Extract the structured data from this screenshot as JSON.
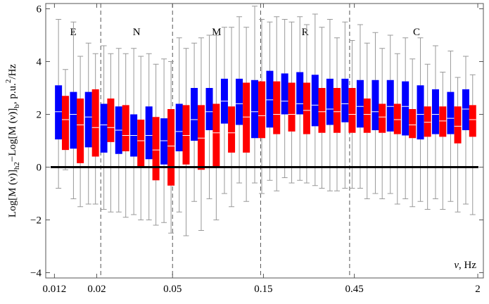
{
  "chart_data": {
    "type": "box",
    "y_label_parts": [
      "Log[M (ν)]",
      "h2",
      "−Log[M (ν)]",
      "b",
      ", p.u.",
      "2",
      "/Hz"
    ],
    "x_label_parts": [
      "ν",
      ", Hz"
    ],
    "xscale": "log",
    "xlim": [
      0.0108,
      2.14
    ],
    "ylim": [
      -4.2,
      6.2
    ],
    "xticks": [
      0.012,
      0.02,
      0.05,
      0.15,
      0.45,
      2
    ],
    "yticks": [
      {
        "value": -4,
        "label": "−4"
      },
      {
        "value": -2,
        "label": "−2"
      },
      0,
      2,
      4,
      6
    ],
    "reference_line": 0,
    "regions": [
      "E",
      "N",
      "M",
      "R",
      "C"
    ],
    "region_bounds": [
      0.021,
      0.05,
      0.145,
      0.425
    ],
    "series": [
      {
        "color": "#0000ff",
        "x": [
          0.0126,
          0.0151,
          0.0181,
          0.0218,
          0.0261,
          0.0313,
          0.0376,
          0.0451,
          0.0542,
          0.065,
          0.078,
          0.0936,
          0.112,
          0.135,
          0.162,
          0.194,
          0.233,
          0.28,
          0.335,
          0.402,
          0.483,
          0.58,
          0.695,
          0.834,
          1.0,
          1.2,
          1.44,
          1.73
        ],
        "whisker_low": [
          -0.8,
          -1.2,
          -1.4,
          -1.6,
          -1.7,
          -1.8,
          -2.0,
          -2.1,
          -1.7,
          -1.3,
          -1.2,
          -1.0,
          -0.6,
          -0.6,
          -0.5,
          -0.4,
          -0.5,
          -0.7,
          -0.9,
          -0.8,
          -0.8,
          -1.0,
          -1.0,
          -1.2,
          -1.3,
          -1.2,
          -1.3,
          -1.4
        ],
        "q1": [
          1.05,
          0.7,
          0.75,
          0.55,
          0.5,
          0.4,
          0.3,
          0.1,
          0.6,
          1.0,
          1.4,
          1.65,
          1.6,
          1.1,
          1.5,
          2.0,
          2.0,
          1.55,
          1.6,
          1.7,
          1.5,
          1.4,
          1.35,
          1.2,
          1.05,
          1.25,
          1.25,
          1.4
        ],
        "median": [
          2.1,
          2.0,
          1.9,
          1.6,
          1.4,
          1.2,
          1.2,
          1.0,
          1.35,
          1.8,
          2.1,
          2.5,
          2.4,
          2.1,
          2.55,
          2.5,
          2.4,
          2.35,
          2.2,
          2.4,
          2.3,
          2.1,
          2.3,
          2.3,
          2.0,
          2.0,
          1.85,
          2.2
        ],
        "q3": [
          3.1,
          2.85,
          2.85,
          2.4,
          2.3,
          2.0,
          2.3,
          1.85,
          2.4,
          3.0,
          3.0,
          3.35,
          3.35,
          3.3,
          3.65,
          3.55,
          3.6,
          3.5,
          3.35,
          3.35,
          3.3,
          3.3,
          3.3,
          3.25,
          3.1,
          2.95,
          2.85,
          2.95
        ],
        "whisker_high": [
          5.6,
          5.5,
          4.7,
          4.6,
          4.5,
          4.5,
          4.3,
          4.1,
          4.9,
          4.7,
          5.0,
          5.3,
          5.7,
          6.1,
          5.5,
          5.6,
          5.7,
          5.8,
          5.6,
          5.5,
          5.4,
          5.1,
          5.0,
          4.9,
          4.9,
          4.6,
          4.4,
          4.2
        ]
      },
      {
        "color": "#ff0000",
        "x": [
          0.0137,
          0.0164,
          0.0197,
          0.0237,
          0.0284,
          0.0341,
          0.0409,
          0.0491,
          0.0589,
          0.0707,
          0.0848,
          0.102,
          0.122,
          0.147,
          0.176,
          0.211,
          0.253,
          0.304,
          0.365,
          0.438,
          0.525,
          0.63,
          0.757,
          0.908,
          1.09,
          1.31,
          1.57,
          1.88
        ],
        "whisker_low": [
          -0.1,
          -1.5,
          -1.4,
          -1.7,
          -1.9,
          -2.0,
          -2.2,
          -2.5,
          -2.6,
          -2.4,
          -2.0,
          -1.5,
          -1.3,
          -1.0,
          -0.9,
          -0.6,
          -0.6,
          -0.8,
          -0.9,
          -0.8,
          -1.2,
          -1.2,
          -1.4,
          -1.5,
          -1.6,
          -1.6,
          -1.7,
          -1.8
        ],
        "q1": [
          0.65,
          0.15,
          0.4,
          0.95,
          0.6,
          0.0,
          -0.5,
          -0.7,
          0.1,
          -0.1,
          0.0,
          0.55,
          0.55,
          1.1,
          1.25,
          1.35,
          1.25,
          1.3,
          1.3,
          1.3,
          1.3,
          1.3,
          1.25,
          1.1,
          1.15,
          1.15,
          0.9,
          1.15
        ],
        "median": [
          1.8,
          1.6,
          1.5,
          1.5,
          1.2,
          1.0,
          0.65,
          0.8,
          1.2,
          1.1,
          1.3,
          1.3,
          1.9,
          1.95,
          2.0,
          2.0,
          2.15,
          2.1,
          2.1,
          2.0,
          2.0,
          1.9,
          1.8,
          1.6,
          1.7,
          1.75,
          1.55,
          1.8
        ],
        "q3": [
          2.7,
          2.6,
          2.95,
          2.6,
          2.35,
          1.8,
          1.9,
          2.2,
          2.35,
          2.35,
          2.4,
          2.3,
          3.2,
          3.25,
          3.25,
          3.2,
          3.2,
          3.0,
          3.0,
          3.0,
          2.6,
          2.4,
          2.4,
          2.2,
          2.3,
          2.3,
          2.3,
          2.35
        ],
        "whisker_high": [
          3.7,
          4.2,
          4.3,
          4.3,
          4.3,
          4.2,
          3.9,
          4.0,
          4.5,
          4.9,
          5.0,
          5.3,
          5.3,
          5.6,
          5.7,
          5.5,
          5.4,
          5.3,
          4.9,
          4.8,
          4.7,
          4.5,
          4.3,
          4.1,
          3.9,
          3.6,
          3.4,
          3.5
        ]
      }
    ]
  }
}
